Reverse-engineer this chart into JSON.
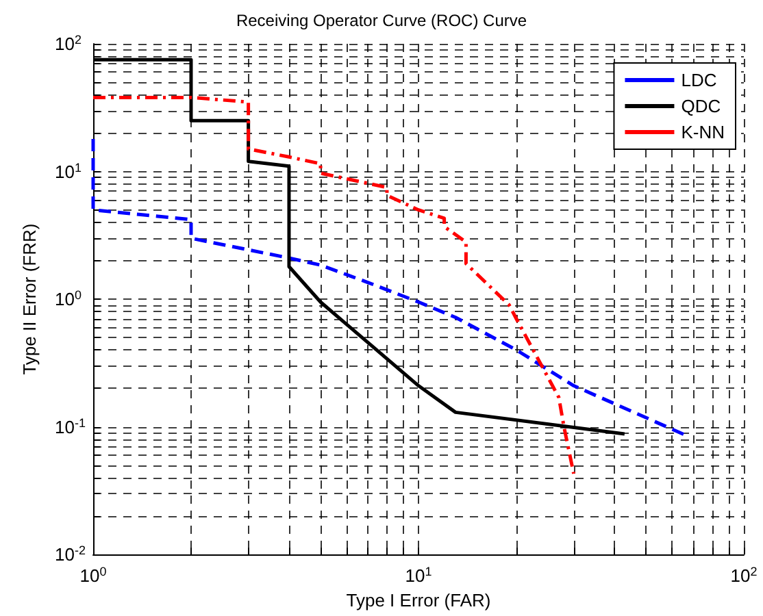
{
  "chart_data": {
    "type": "line",
    "title": "Receiving Operator Curve (ROC) Curve",
    "xlabel": "Type I Error (FAR)",
    "ylabel": "Type II Error (FRR)",
    "log": "xy",
    "grid": true,
    "legend": "top right",
    "marker": "none",
    "xlim": [
      1,
      100
    ],
    "ylim": [
      0.01,
      100
    ],
    "xticks": [
      {
        "value": 1,
        "label": "10$^{0}$"
      },
      {
        "value": 2,
        "label": null
      },
      {
        "value": 3,
        "label": null
      },
      {
        "value": 4,
        "label": null
      },
      {
        "value": 5,
        "label": null
      },
      {
        "value": 6,
        "label": null
      },
      {
        "value": 7,
        "label": null
      },
      {
        "value": 8,
        "label": null
      },
      {
        "value": 9,
        "label": null
      },
      {
        "value": 10,
        "label": "10$^{1}$"
      },
      {
        "value": 20,
        "label": null
      },
      {
        "value": 30,
        "label": null
      },
      {
        "value": 40,
        "label": null
      },
      {
        "value": 50,
        "label": null
      },
      {
        "value": 60,
        "label": null
      },
      {
        "value": 70,
        "label": null
      },
      {
        "value": 80,
        "label": null
      },
      {
        "value": 90,
        "label": null
      },
      {
        "value": 100,
        "label": "10$^{2}$"
      }
    ],
    "yticks": [
      {
        "value": 0.01,
        "label": "10$^{-2}$"
      },
      {
        "value": 0.02,
        "label": null
      },
      {
        "value": 0.03,
        "label": null
      },
      {
        "value": 0.04,
        "label": null
      },
      {
        "value": 0.05,
        "label": null
      },
      {
        "value": 0.06,
        "label": null
      },
      {
        "value": 0.07,
        "label": null
      },
      {
        "value": 0.08,
        "label": null
      },
      {
        "value": 0.09,
        "label": null
      },
      {
        "value": 0.1,
        "label": "10$^{-1}$"
      },
      {
        "value": 0.2,
        "label": null
      },
      {
        "value": 0.3,
        "label": null
      },
      {
        "value": 0.4,
        "label": null
      },
      {
        "value": 0.5,
        "label": null
      },
      {
        "value": 0.6,
        "label": null
      },
      {
        "value": 0.7,
        "label": null
      },
      {
        "value": 0.8,
        "label": null
      },
      {
        "value": 0.9,
        "label": null
      },
      {
        "value": 1,
        "label": "10$^{0}$"
      },
      {
        "value": 2,
        "label": null
      },
      {
        "value": 3,
        "label": null
      },
      {
        "value": 4,
        "label": null
      },
      {
        "value": 5,
        "label": null
      },
      {
        "value": 6,
        "label": null
      },
      {
        "value": 7,
        "label": null
      },
      {
        "value": 8,
        "label": null
      },
      {
        "value": 9,
        "label": null
      },
      {
        "value": 10,
        "label": "10$^{1}$"
      },
      {
        "value": 20,
        "label": null
      },
      {
        "value": 30,
        "label": null
      },
      {
        "value": 40,
        "label": null
      },
      {
        "value": 50,
        "label": null
      },
      {
        "value": 60,
        "label": null
      },
      {
        "value": 70,
        "label": null
      },
      {
        "value": 80,
        "label": null
      },
      {
        "value": 90,
        "label": null
      },
      {
        "value": 100,
        "label": "10$^{2}$"
      }
    ],
    "series": [
      {
        "name": "LDC",
        "color": "#0000ff",
        "line_style": "dashed",
        "x": [
          1,
          1,
          2,
          2,
          4,
          5,
          7,
          10,
          13,
          20,
          30,
          67
        ],
        "values": [
          18,
          5,
          4.2,
          3,
          2.1,
          1.85,
          1.35,
          0.95,
          0.72,
          0.4,
          0.21,
          0.085
        ]
      },
      {
        "name": "QDC",
        "color": "#000000",
        "line_style": "solid",
        "x": [
          1,
          2,
          2,
          3,
          3,
          4,
          4,
          5,
          10,
          13,
          43
        ],
        "values": [
          75,
          75,
          25,
          25,
          12,
          11,
          1.8,
          0.95,
          0.21,
          0.13,
          0.088
        ]
      },
      {
        "name": "K-NN",
        "color": "#ff0000",
        "line_style": "dashdot",
        "x": [
          1,
          2,
          3,
          3,
          4,
          5,
          5,
          8,
          8,
          10,
          12,
          12,
          14,
          14,
          19,
          20,
          27,
          28,
          30
        ],
        "values": [
          38,
          38,
          35,
          15,
          13,
          11.5,
          9.7,
          7.5,
          6.5,
          5,
          4.3,
          3.7,
          2.8,
          1.9,
          0.9,
          0.7,
          0.17,
          0.1,
          0.043
        ]
      }
    ]
  }
}
